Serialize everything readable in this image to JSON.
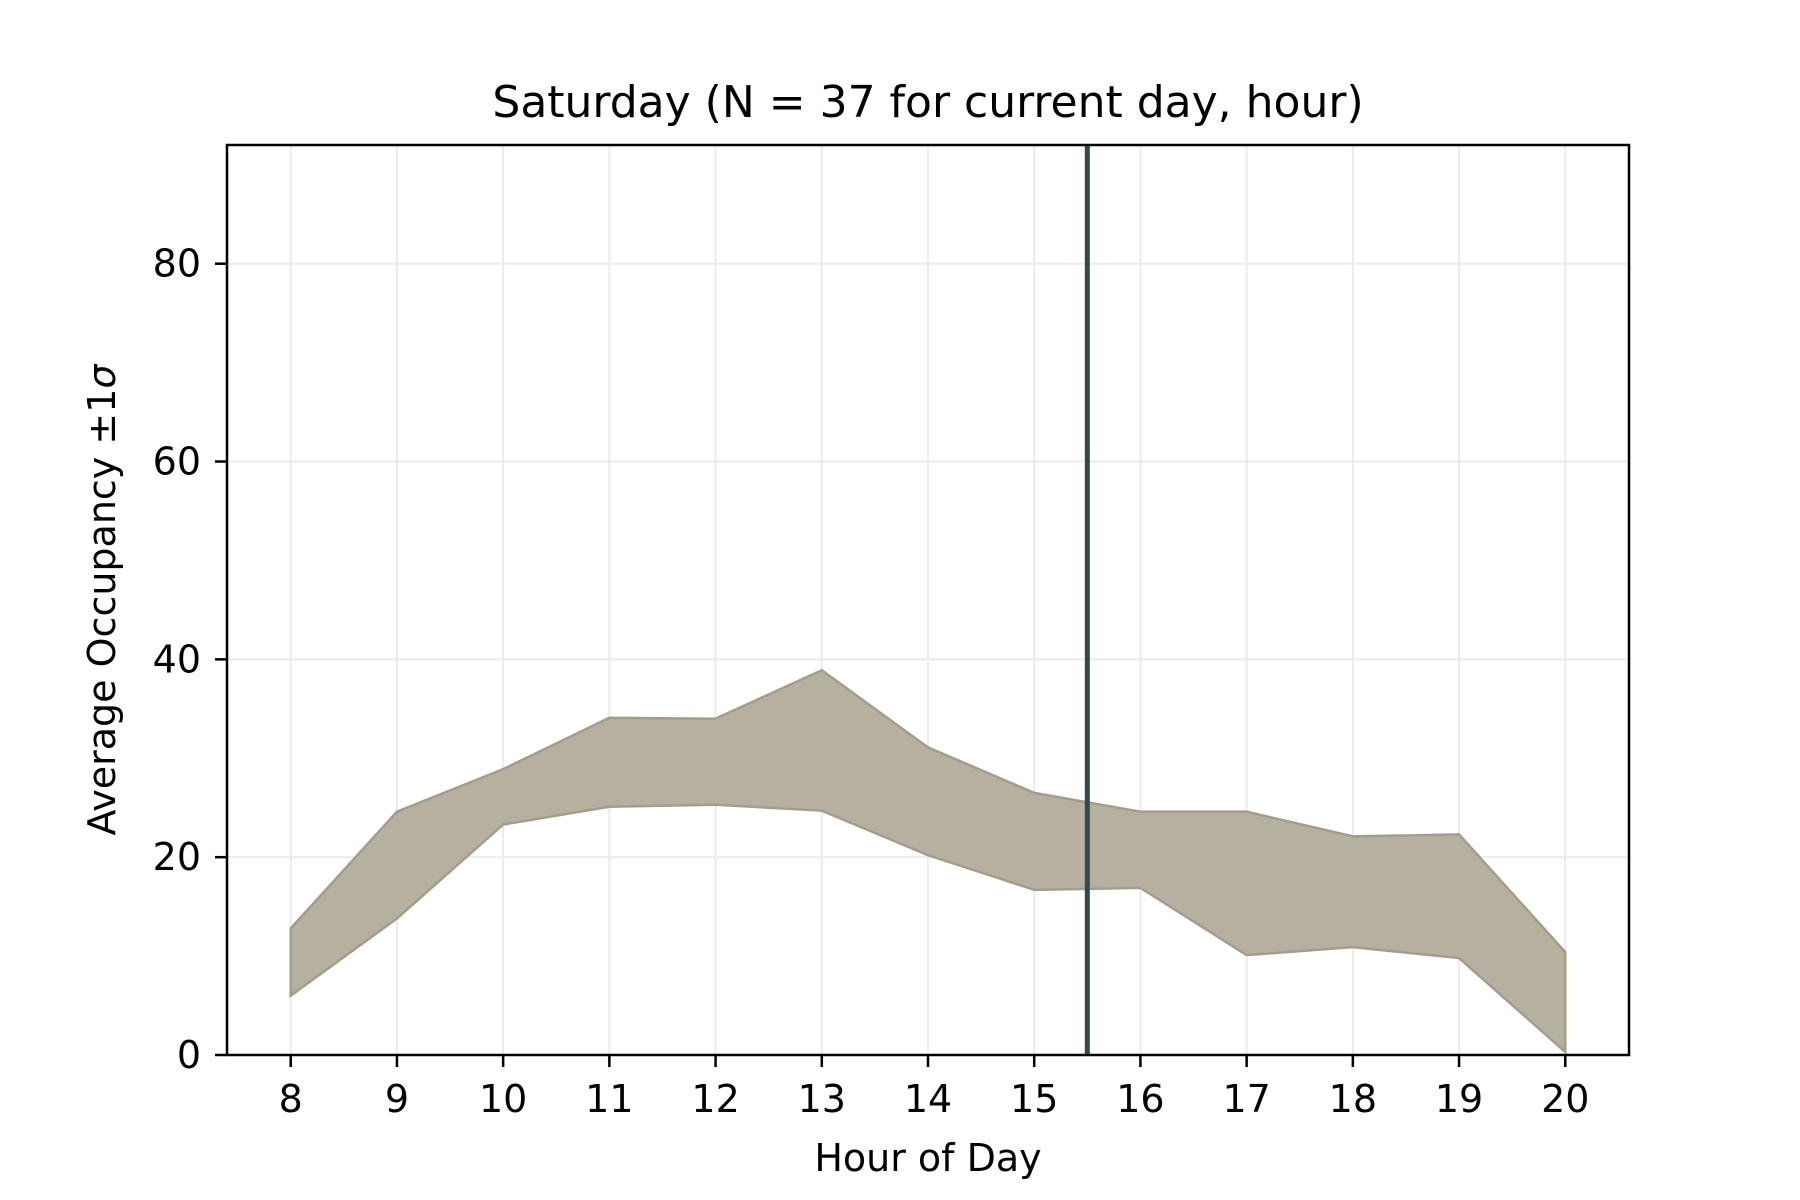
{
  "chart_data": {
    "type": "area",
    "title": "Saturday (N = 37 for current day, hour)",
    "xlabel": "Hour of Day",
    "ylabel": "Average Occupancy ±1",
    "ylabel_symbol": "σ",
    "x": [
      8,
      9,
      10,
      11,
      12,
      13,
      14,
      15,
      16,
      17,
      18,
      19,
      20
    ],
    "series": [
      {
        "lower": [
          6.0,
          13.8,
          23.3,
          25.1,
          25.3,
          24.7,
          20.2,
          16.7,
          16.9,
          10.1,
          10.9,
          9.8,
          0.3
        ],
        "upper": [
          12.8,
          24.6,
          28.9,
          34.1,
          34.0,
          38.9,
          31.1,
          26.5,
          24.6,
          24.6,
          22.1,
          22.3,
          10.4
        ],
        "color": "#b5b09f"
      }
    ],
    "current_hour": 15.5,
    "current_hour_line_color": "#34484f",
    "xlim": [
      7.4,
      20.6
    ],
    "ylim": [
      0,
      92
    ],
    "xticks": [
      "8",
      "9",
      "10",
      "11",
      "12",
      "13",
      "14",
      "15",
      "16",
      "17",
      "18",
      "19",
      "20"
    ],
    "yticks": [
      "0",
      "20",
      "40",
      "60",
      "80"
    ],
    "grid": true
  }
}
